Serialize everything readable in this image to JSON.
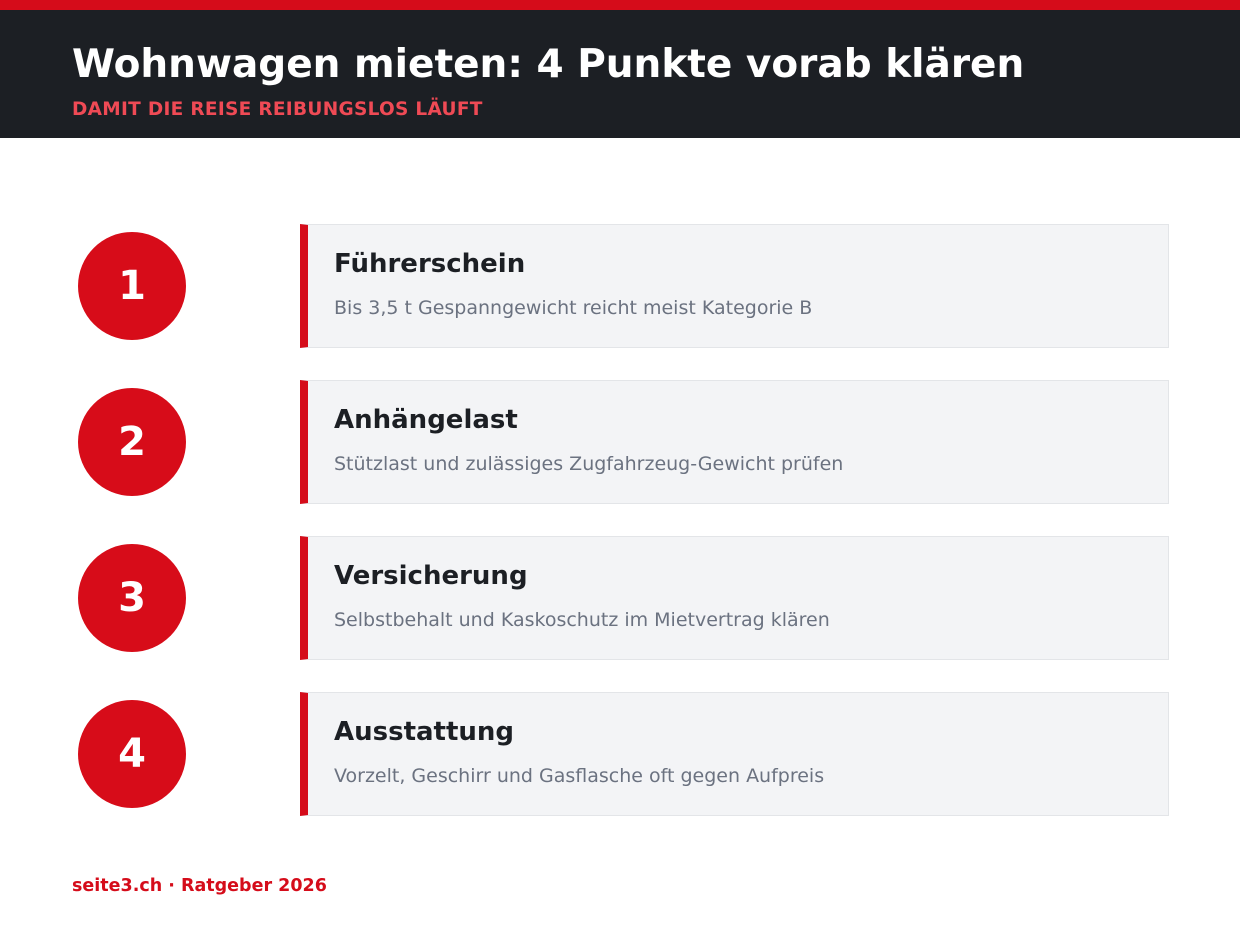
{
  "header": {
    "title": "Wohnwagen mieten: 4 Punkte vorab klären",
    "subtitle": "DAMIT DIE REISE REIBUNGSLOS LÄUFT"
  },
  "items": [
    {
      "number": 1,
      "title": "Führerschein",
      "text": "Bis 3,5 t Gespanngewicht reicht meist Kategorie B"
    },
    {
      "number": 2,
      "title": "Anhängelast",
      "text": "Stützlast und zulässiges Zugfahrzeug-Gewicht prüfen"
    },
    {
      "number": 3,
      "title": "Versicherung",
      "text": "Selbstbehalt und Kaskoschutz im Mietvertrag klären"
    },
    {
      "number": 4,
      "title": "Ausstattung",
      "text": "Vorzelt, Geschirr und Gasflasche oft gegen Aufpreis"
    }
  ],
  "footer": {
    "text": "seite3.ch · Ratgeber 2026"
  }
}
